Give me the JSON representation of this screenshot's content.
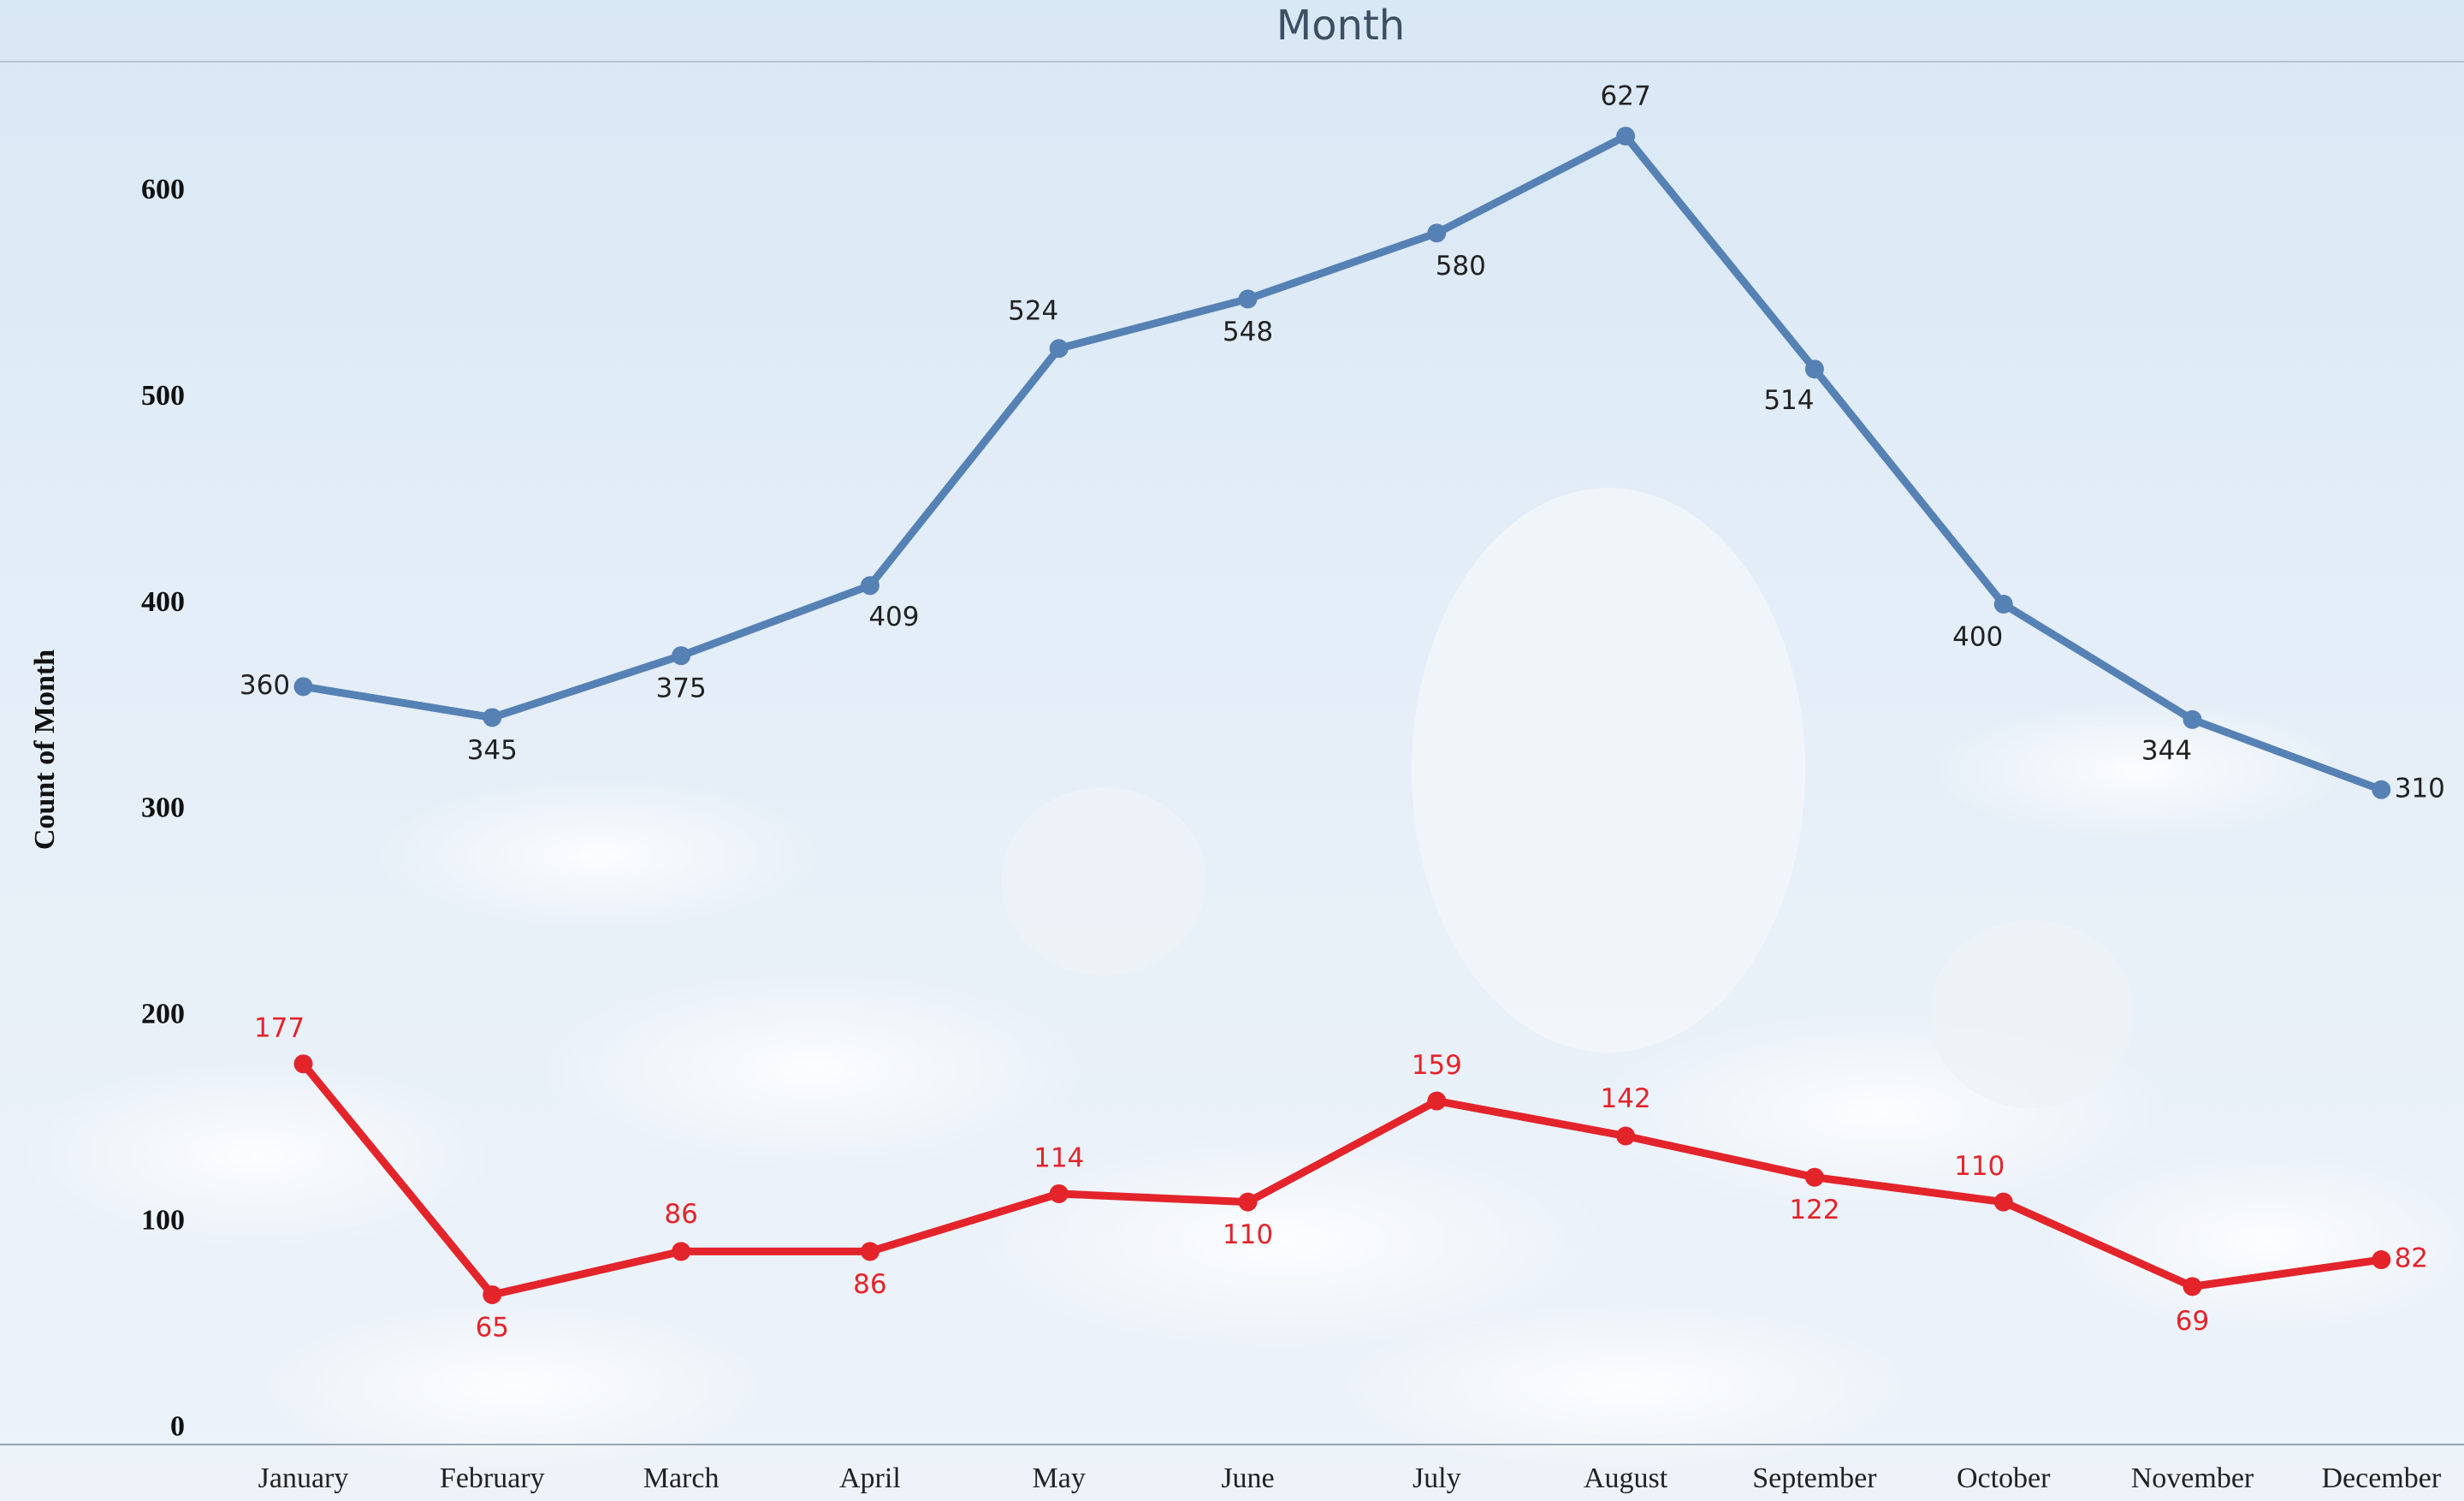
{
  "chart_data": {
    "type": "line",
    "title": "Month",
    "y_label": "Count of Month",
    "categories": [
      "January",
      "February",
      "March",
      "April",
      "May",
      "June",
      "July",
      "August",
      "September",
      "October",
      "November",
      "December"
    ],
    "series": [
      {
        "color": "#5681b4",
        "values": [
          360,
          345,
          375,
          409,
          524,
          548,
          580,
          627,
          514,
          400,
          344,
          310
        ]
      },
      {
        "color": "#e3242b",
        "values": [
          177,
          65,
          86,
          86,
          114,
          110,
          159,
          142,
          122,
          110,
          69,
          82
        ]
      }
    ],
    "ylim": [
      0,
      660
    ],
    "yticks": [
      0,
      100,
      200,
      300,
      400,
      500,
      600
    ],
    "grid": false
  }
}
